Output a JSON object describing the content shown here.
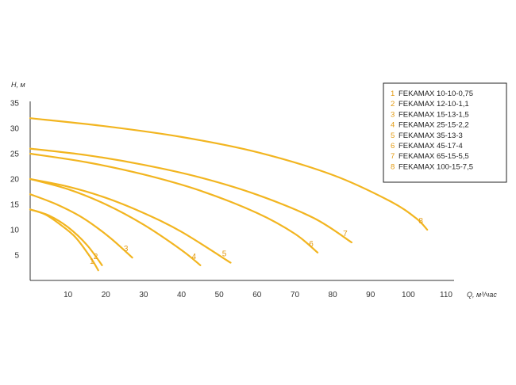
{
  "chart_data": {
    "type": "line",
    "xlabel": "Q, м³/час",
    "ylabel": "Н, м",
    "xlim": [
      0,
      110
    ],
    "ylim": [
      0,
      35
    ],
    "x_ticks": [
      10,
      20,
      30,
      40,
      50,
      60,
      70,
      80,
      90,
      100,
      110
    ],
    "y_ticks": [
      5,
      10,
      15,
      20,
      25,
      30,
      35
    ],
    "grid": false,
    "legend_position": "top-right",
    "colors": {
      "curve": "#F2B520",
      "number": "#E39A12",
      "axis": "#333333",
      "legend_border": "#222222"
    },
    "series": [
      {
        "id": "1",
        "name": "FEKAMAX 10-10-0,75",
        "x": [
          0,
          4,
          8,
          12,
          16,
          18
        ],
        "y": [
          14,
          13,
          11,
          8.5,
          4.5,
          2
        ]
      },
      {
        "id": "2",
        "name": "FEKAMAX 12-10-1,1",
        "x": [
          0,
          5,
          10,
          15,
          19
        ],
        "y": [
          14,
          12.8,
          10.5,
          7,
          3
        ]
      },
      {
        "id": "3",
        "name": "FEKAMAX 15-13-1,5",
        "x": [
          0,
          7,
          14,
          21,
          27
        ],
        "y": [
          17,
          15,
          12.3,
          8.5,
          4.5
        ]
      },
      {
        "id": "4",
        "name": "FEKAMAX 25-15-2,2",
        "x": [
          0,
          10,
          20,
          30,
          40,
          45
        ],
        "y": [
          20,
          18,
          15,
          11,
          6,
          3
        ]
      },
      {
        "id": "5",
        "name": "FEKAMAX 35-13-3",
        "x": [
          0,
          10,
          20,
          30,
          40,
          53
        ],
        "y": [
          20,
          18.5,
          16.3,
          13.3,
          9.6,
          3.5
        ]
      },
      {
        "id": "6",
        "name": "FEKAMAX 45-17-4",
        "x": [
          0,
          15,
          30,
          45,
          60,
          70,
          76
        ],
        "y": [
          25,
          23.3,
          20.9,
          17.7,
          13.3,
          9.2,
          5.5
        ]
      },
      {
        "id": "7",
        "name": "FEKAMAX 65-15-5,5",
        "x": [
          0,
          15,
          30,
          45,
          60,
          75,
          85
        ],
        "y": [
          26,
          24.7,
          22.8,
          20.3,
          16.9,
          12.3,
          7.5
        ]
      },
      {
        "id": "8",
        "name": "FEKAMAX 100-15-7,5",
        "x": [
          0,
          20,
          40,
          60,
          80,
          95,
          102,
          105
        ],
        "y": [
          32,
          30.4,
          28.3,
          25.3,
          20.8,
          15.7,
          12.3,
          10
        ]
      }
    ]
  }
}
